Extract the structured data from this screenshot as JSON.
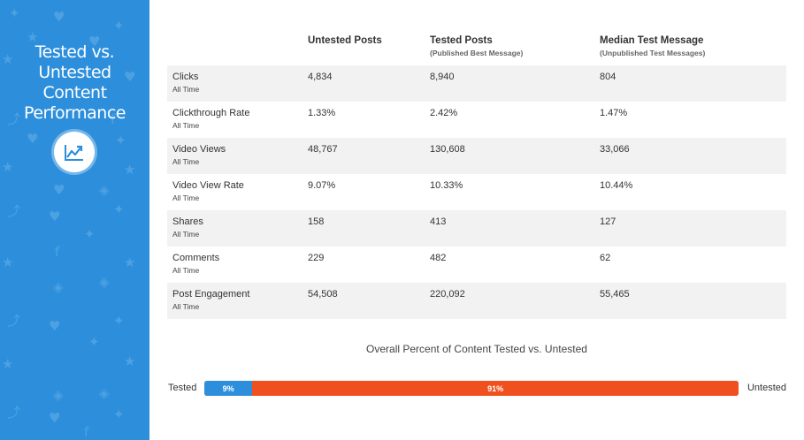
{
  "sidebar": {
    "title_lines": [
      "Tested vs.",
      "Untested",
      "Content",
      "Performance"
    ],
    "badge_icon": "line-chart-icon",
    "bg_color": "#2d8fdc"
  },
  "table": {
    "columns": [
      {
        "label": "Untested Posts",
        "sub": ""
      },
      {
        "label": "Tested Posts",
        "sub": "(Published Best Message)"
      },
      {
        "label": "Median Test Message",
        "sub": "(Unpublished Test Messages)"
      }
    ],
    "rows": [
      {
        "metric": "Clicks",
        "period": "All Time",
        "values": [
          "4,834",
          "8,940",
          "804"
        ]
      },
      {
        "metric": "Clickthrough Rate",
        "period": "All Time",
        "values": [
          "1.33%",
          "2.42%",
          "1.47%"
        ]
      },
      {
        "metric": "Video Views",
        "period": "All Time",
        "values": [
          "48,767",
          "130,608",
          "33,066"
        ]
      },
      {
        "metric": "Video View Rate",
        "period": "All Time",
        "values": [
          "9.07%",
          "10.33%",
          "10.44%"
        ]
      },
      {
        "metric": "Shares",
        "period": "All Time",
        "values": [
          "158",
          "413",
          "127"
        ]
      },
      {
        "metric": "Comments",
        "period": "All Time",
        "values": [
          "229",
          "482",
          "62"
        ]
      },
      {
        "metric": "Post Engagement",
        "period": "All Time",
        "values": [
          "54,508",
          "220,092",
          "55,465"
        ]
      }
    ]
  },
  "summary": {
    "title": "Overall Percent of Content Tested vs. Untested",
    "left_label": "Tested",
    "right_label": "Untested",
    "tested_percent": 9,
    "untested_percent": 91,
    "tested_text": "9%",
    "untested_text": "91%",
    "tested_color": "#2d8fdc",
    "untested_color": "#f0501e"
  }
}
